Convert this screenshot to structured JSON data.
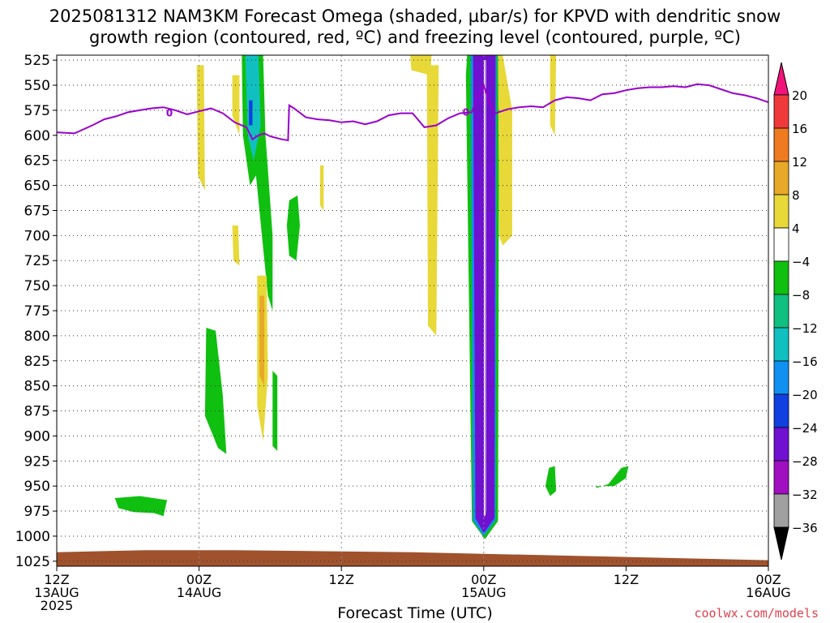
{
  "title_line1": "2025081312 NAM3KM Forecast Omega (shaded, µbar/s) for KPVD with dendritic snow",
  "title_line2": "growth region (contoured, red, ºC) and freezing level (contoured, purple, ºC)",
  "xlabel": "Forecast Time (UTC)",
  "credit": "coolwx.com/models",
  "chart_data": {
    "type": "heatmap",
    "x_ticks": [
      {
        "hours": 0,
        "lines": [
          "12Z",
          "13AUG",
          "2025"
        ]
      },
      {
        "hours": 12,
        "lines": [
          "00Z",
          "14AUG"
        ]
      },
      {
        "hours": 24,
        "lines": [
          "12Z"
        ]
      },
      {
        "hours": 36,
        "lines": [
          "00Z",
          "15AUG"
        ]
      },
      {
        "hours": 48,
        "lines": [
          "12Z"
        ]
      },
      {
        "hours": 60,
        "lines": [
          "00Z",
          "16AUG"
        ]
      }
    ],
    "xlim_hours": [
      0,
      60
    ],
    "y_ticks": [
      525,
      550,
      575,
      600,
      625,
      650,
      675,
      700,
      725,
      750,
      775,
      800,
      825,
      850,
      875,
      900,
      925,
      950,
      975,
      1000,
      1025
    ],
    "ylim_hpa": [
      520,
      1030
    ],
    "grid": true,
    "colorbar": {
      "labels": [
        "20",
        "16",
        "12",
        "8",
        "4",
        "−4",
        "−8",
        "−12",
        "−16",
        "−20",
        "−24",
        "−28",
        "−32",
        "−36"
      ],
      "colors": [
        "#f0147a",
        "#f03a3a",
        "#f07a20",
        "#e8a828",
        "#e8d838",
        "#ffffff",
        "#10c010",
        "#10c080",
        "#10c0c0",
        "#1090f0",
        "#1040e0",
        "#7010d0",
        "#a010c0",
        "#a0a0a0",
        "#000000"
      ]
    },
    "freezing_level": {
      "label": "0",
      "color": "#9900cc",
      "points": [
        [
          0,
          597
        ],
        [
          1.5,
          598
        ],
        [
          3,
          590
        ],
        [
          4,
          584
        ],
        [
          5,
          581
        ],
        [
          6,
          577
        ],
        [
          7,
          575
        ],
        [
          8,
          573
        ],
        [
          9,
          572
        ],
        [
          10,
          575
        ],
        [
          11,
          579
        ],
        [
          12,
          576
        ],
        [
          13,
          573
        ],
        [
          14,
          578
        ],
        [
          15,
          587
        ],
        [
          16,
          592
        ],
        [
          16.5,
          604
        ],
        [
          17,
          600
        ],
        [
          17.5,
          598
        ],
        [
          18,
          601
        ],
        [
          19,
          604
        ],
        [
          19.5,
          605
        ],
        [
          19.6,
          570
        ],
        [
          20,
          573
        ],
        [
          21,
          582
        ],
        [
          22,
          584
        ],
        [
          23,
          585
        ],
        [
          24,
          587
        ],
        [
          25,
          586
        ],
        [
          26,
          589
        ],
        [
          27,
          586
        ],
        [
          28,
          580
        ],
        [
          29,
          578
        ],
        [
          30,
          578
        ],
        [
          31,
          592
        ],
        [
          32,
          590
        ],
        [
          33,
          583
        ],
        [
          34,
          578
        ],
        [
          35,
          577
        ],
        [
          35.5,
          560
        ],
        [
          36,
          550
        ],
        [
          36.5,
          568
        ],
        [
          37,
          578
        ],
        [
          38,
          574
        ],
        [
          39,
          572
        ],
        [
          40,
          571
        ],
        [
          41,
          572
        ],
        [
          42,
          565
        ],
        [
          43,
          562
        ],
        [
          44,
          563
        ],
        [
          45,
          565
        ],
        [
          46,
          559
        ],
        [
          47,
          558
        ],
        [
          48,
          555
        ],
        [
          49,
          553
        ],
        [
          50,
          552
        ],
        [
          51,
          552
        ],
        [
          52,
          551
        ],
        [
          53,
          552
        ],
        [
          54,
          549
        ],
        [
          55,
          550
        ],
        [
          56,
          554
        ],
        [
          57,
          558
        ],
        [
          58,
          560
        ],
        [
          59,
          563
        ],
        [
          60,
          567
        ]
      ]
    },
    "shaded_regions": [
      {
        "name": "column-black",
        "color": "#000000",
        "points": [
          [
            35.3,
            520
          ],
          [
            36.9,
            520
          ],
          [
            36.7,
            980
          ],
          [
            36,
            994
          ],
          [
            35.4,
            980
          ]
        ]
      },
      {
        "name": "column-green-outer",
        "color": "#10c010",
        "points": [
          [
            34.6,
            520
          ],
          [
            37.3,
            520
          ],
          [
            37.2,
            985
          ],
          [
            36.1,
            1003
          ],
          [
            35,
            985
          ],
          [
            34.8,
            800
          ],
          [
            34.5,
            540
          ]
        ]
      },
      {
        "name": "column-blue",
        "color": "#1090f0",
        "points": [
          [
            34.9,
            520
          ],
          [
            37.1,
            520
          ],
          [
            37,
            984
          ],
          [
            36,
            1000
          ],
          [
            35.1,
            984
          ]
        ]
      },
      {
        "name": "column-purple",
        "color": "#7010d0",
        "points": [
          [
            35.1,
            520
          ],
          [
            37,
            520
          ],
          [
            36.9,
            982
          ],
          [
            36,
            997
          ],
          [
            35.3,
            982
          ]
        ]
      },
      {
        "name": "green-plume-14aug",
        "color": "#10c010",
        "points": [
          [
            15.6,
            520
          ],
          [
            17.4,
            520
          ],
          [
            17.6,
            600
          ],
          [
            18.2,
            700
          ],
          [
            18.2,
            775
          ],
          [
            17.8,
            760
          ],
          [
            16.8,
            640
          ],
          [
            16.3,
            650
          ],
          [
            15.7,
            600
          ]
        ]
      },
      {
        "name": "cyan-plume-14aug",
        "color": "#10c0c0",
        "points": [
          [
            15.9,
            520
          ],
          [
            17.0,
            520
          ],
          [
            17.2,
            590
          ],
          [
            16.6,
            625
          ],
          [
            16.1,
            600
          ]
        ]
      },
      {
        "name": "blue-spot-14aug",
        "color": "#1040e0",
        "points": [
          [
            16.2,
            565
          ],
          [
            16.5,
            565
          ],
          [
            16.5,
            590
          ],
          [
            16.2,
            590
          ]
        ]
      },
      {
        "name": "green-blob-high",
        "color": "#10c010",
        "points": [
          [
            19.6,
            665
          ],
          [
            20.3,
            660
          ],
          [
            20.5,
            690
          ],
          [
            20.2,
            725
          ],
          [
            19.6,
            720
          ],
          [
            19.4,
            690
          ]
        ]
      },
      {
        "name": "green-blob-mid",
        "color": "#10c010",
        "points": [
          [
            12.6,
            792
          ],
          [
            13.4,
            795
          ],
          [
            14.0,
            860
          ],
          [
            14.3,
            918
          ],
          [
            13.6,
            912
          ],
          [
            12.5,
            880
          ]
        ]
      },
      {
        "name": "green-blob-narrow",
        "color": "#10c010",
        "points": [
          [
            18.2,
            835
          ],
          [
            18.6,
            840
          ],
          [
            18.6,
            915
          ],
          [
            18.2,
            910
          ]
        ]
      },
      {
        "name": "green-blob-low",
        "color": "#10c010",
        "points": [
          [
            4.9,
            962
          ],
          [
            7.0,
            960
          ],
          [
            9.3,
            964
          ],
          [
            9.0,
            980
          ],
          [
            8.2,
            977
          ],
          [
            6.5,
            976
          ],
          [
            5.2,
            972
          ]
        ]
      },
      {
        "name": "green-blob-east1",
        "color": "#10c010",
        "points": [
          [
            41.5,
            932
          ],
          [
            42.0,
            930
          ],
          [
            42.1,
            955
          ],
          [
            41.6,
            960
          ],
          [
            41.2,
            950
          ]
        ]
      },
      {
        "name": "green-blob-east2",
        "color": "#10c010",
        "points": [
          [
            45.5,
            950
          ],
          [
            47.0,
            950
          ],
          [
            48.0,
            942
          ],
          [
            48.2,
            930
          ],
          [
            47.6,
            932
          ],
          [
            46.5,
            948
          ],
          [
            45.5,
            952
          ]
        ]
      },
      {
        "name": "yellow-strip-13aug",
        "color": "#e8d838",
        "points": [
          [
            11.8,
            530
          ],
          [
            12.4,
            530
          ],
          [
            12.5,
            655
          ],
          [
            11.9,
            640
          ]
        ]
      },
      {
        "name": "yellow-strip-14aug",
        "color": "#e8d838",
        "points": [
          [
            14.8,
            540
          ],
          [
            15.4,
            540
          ],
          [
            15.4,
            600
          ],
          [
            14.8,
            580
          ]
        ]
      },
      {
        "name": "yellow-blob-700",
        "color": "#e8d838",
        "points": [
          [
            14.8,
            690
          ],
          [
            15.3,
            690
          ],
          [
            15.4,
            730
          ],
          [
            14.9,
            725
          ]
        ]
      },
      {
        "name": "yellow-thin-640",
        "color": "#e8d838",
        "points": [
          [
            22.2,
            630
          ],
          [
            22.5,
            630
          ],
          [
            22.5,
            675
          ],
          [
            22.2,
            670
          ]
        ]
      },
      {
        "name": "yellow-strip-800",
        "color": "#e8d838",
        "points": [
          [
            16.9,
            740
          ],
          [
            17.7,
            740
          ],
          [
            17.8,
            840
          ],
          [
            17.4,
            905
          ],
          [
            16.9,
            870
          ]
        ]
      },
      {
        "name": "orange-core-800",
        "color": "#e8a828",
        "points": [
          [
            17.1,
            760
          ],
          [
            17.5,
            760
          ],
          [
            17.5,
            850
          ],
          [
            17.1,
            840
          ]
        ]
      },
      {
        "name": "yellow-top-30",
        "color": "#e8d838",
        "points": [
          [
            29.8,
            520
          ],
          [
            31.6,
            520
          ],
          [
            31.5,
            540
          ],
          [
            29.9,
            535
          ]
        ]
      },
      {
        "name": "yellow-strip-30",
        "color": "#e8d838",
        "points": [
          [
            31.2,
            530
          ],
          [
            32.2,
            530
          ],
          [
            32.0,
            800
          ],
          [
            31.3,
            790
          ]
        ]
      },
      {
        "name": "yellow-right-column",
        "color": "#e8d838",
        "points": [
          [
            37.2,
            520
          ],
          [
            37.6,
            520
          ],
          [
            38.4,
            575
          ],
          [
            38.4,
            700
          ],
          [
            37.6,
            710
          ],
          [
            37.3,
            700
          ]
        ]
      },
      {
        "name": "yellow-strip-41",
        "color": "#e8d838",
        "points": [
          [
            41.6,
            520
          ],
          [
            42.1,
            520
          ],
          [
            42.0,
            600
          ],
          [
            41.6,
            590
          ]
        ]
      }
    ],
    "terrain": {
      "color": "#a0522d",
      "pressure_top_hpa": [
        1016,
        1014,
        1014,
        1015,
        1016,
        1018,
        1020,
        1022,
        1024
      ]
    }
  }
}
